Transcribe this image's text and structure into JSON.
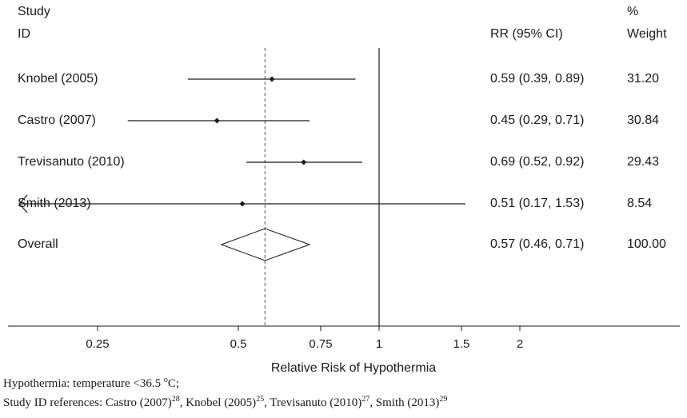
{
  "header": {
    "study_line1": "Study",
    "study_line2": "ID",
    "rr_label": "RR (95% CI)",
    "weight_line1": "%",
    "weight_line2": "Weight"
  },
  "chart_data": {
    "type": "forest",
    "xlabel": "Relative Risk of Hypothermia",
    "xscale": "log",
    "xlim": [
      0.22,
      2.2
    ],
    "ticks": [
      0.25,
      0.5,
      0.75,
      1,
      1.5,
      2
    ],
    "tick_labels": [
      "0.25",
      "0.5",
      "0.75",
      "1",
      "1.5",
      "2"
    ],
    "null_line": 1,
    "overall_line": 0.57,
    "studies": [
      {
        "label": "Knobel (2005)",
        "rr": 0.59,
        "lower": 0.39,
        "upper": 0.89,
        "ci_text": "0.59 (0.39, 0.89)",
        "weight": "31.20"
      },
      {
        "label": "Castro (2007)",
        "rr": 0.45,
        "lower": 0.29,
        "upper": 0.71,
        "ci_text": "0.45 (0.29, 0.71)",
        "weight": "30.84"
      },
      {
        "label": "Trevisanuto (2010)",
        "rr": 0.69,
        "lower": 0.52,
        "upper": 0.92,
        "ci_text": "0.69 (0.52, 0.92)",
        "weight": "29.43"
      },
      {
        "label": "Smith (2013)",
        "rr": 0.51,
        "lower": 0.17,
        "upper": 1.53,
        "ci_text": "0.51 (0.17, 1.53)",
        "weight": "8.54",
        "lower_truncated": true
      }
    ],
    "overall": {
      "label": "Overall",
      "rr": 0.57,
      "lower": 0.46,
      "upper": 0.71,
      "ci_text": "0.57 (0.46, 0.71)",
      "weight": "100.00"
    }
  },
  "footnote": {
    "line1_text": "Hypothermia: temperature <36.5 ",
    "line1_degree": "o",
    "line1_end": "C;",
    "line2_prefix": "Study ID references: ",
    "refs": [
      {
        "name": "Castro (2007)",
        "sup": "28"
      },
      {
        "name": "Knobel (2005)",
        "sup": "25"
      },
      {
        "name": "Trevisanuto (2010)",
        "sup": "27"
      },
      {
        "name": "Smith (2013)",
        "sup": "29"
      }
    ]
  },
  "colors": {
    "ink": "#1a1a1a",
    "dash": "#555555",
    "background": "#ffffff"
  }
}
